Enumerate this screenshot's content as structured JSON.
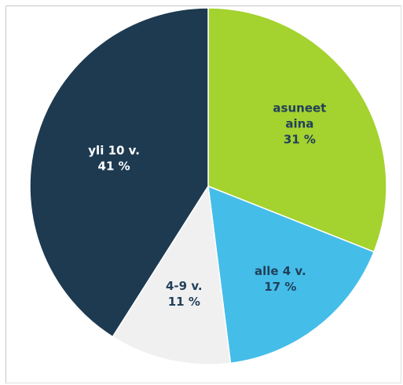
{
  "chart_data": {
    "type": "pie",
    "start_angle": "12 o'clock",
    "direction": "clockwise",
    "slices": [
      {
        "label": "asuneet aina",
        "label_lines": [
          "asuneet",
          "aina"
        ],
        "value": 31,
        "value_label": "31 %",
        "color": "#a4d22e",
        "text_color": "#22415a"
      },
      {
        "label": "alle 4 v.",
        "label_lines": [
          "alle 4 v."
        ],
        "value": 17,
        "value_label": "17 %",
        "color": "#45bde9",
        "text_color": "#22415a"
      },
      {
        "label": "4-9 v.",
        "label_lines": [
          "4-9 v."
        ],
        "value": 11,
        "value_label": "11 %",
        "color": "#f0f0f0",
        "text_color": "#22415a"
      },
      {
        "label": "yli 10 v.",
        "label_lines": [
          "yli 10 v."
        ],
        "value": 41,
        "value_label": "41 %",
        "color": "#1d3a51",
        "text_color": "#ffffff"
      }
    ]
  }
}
